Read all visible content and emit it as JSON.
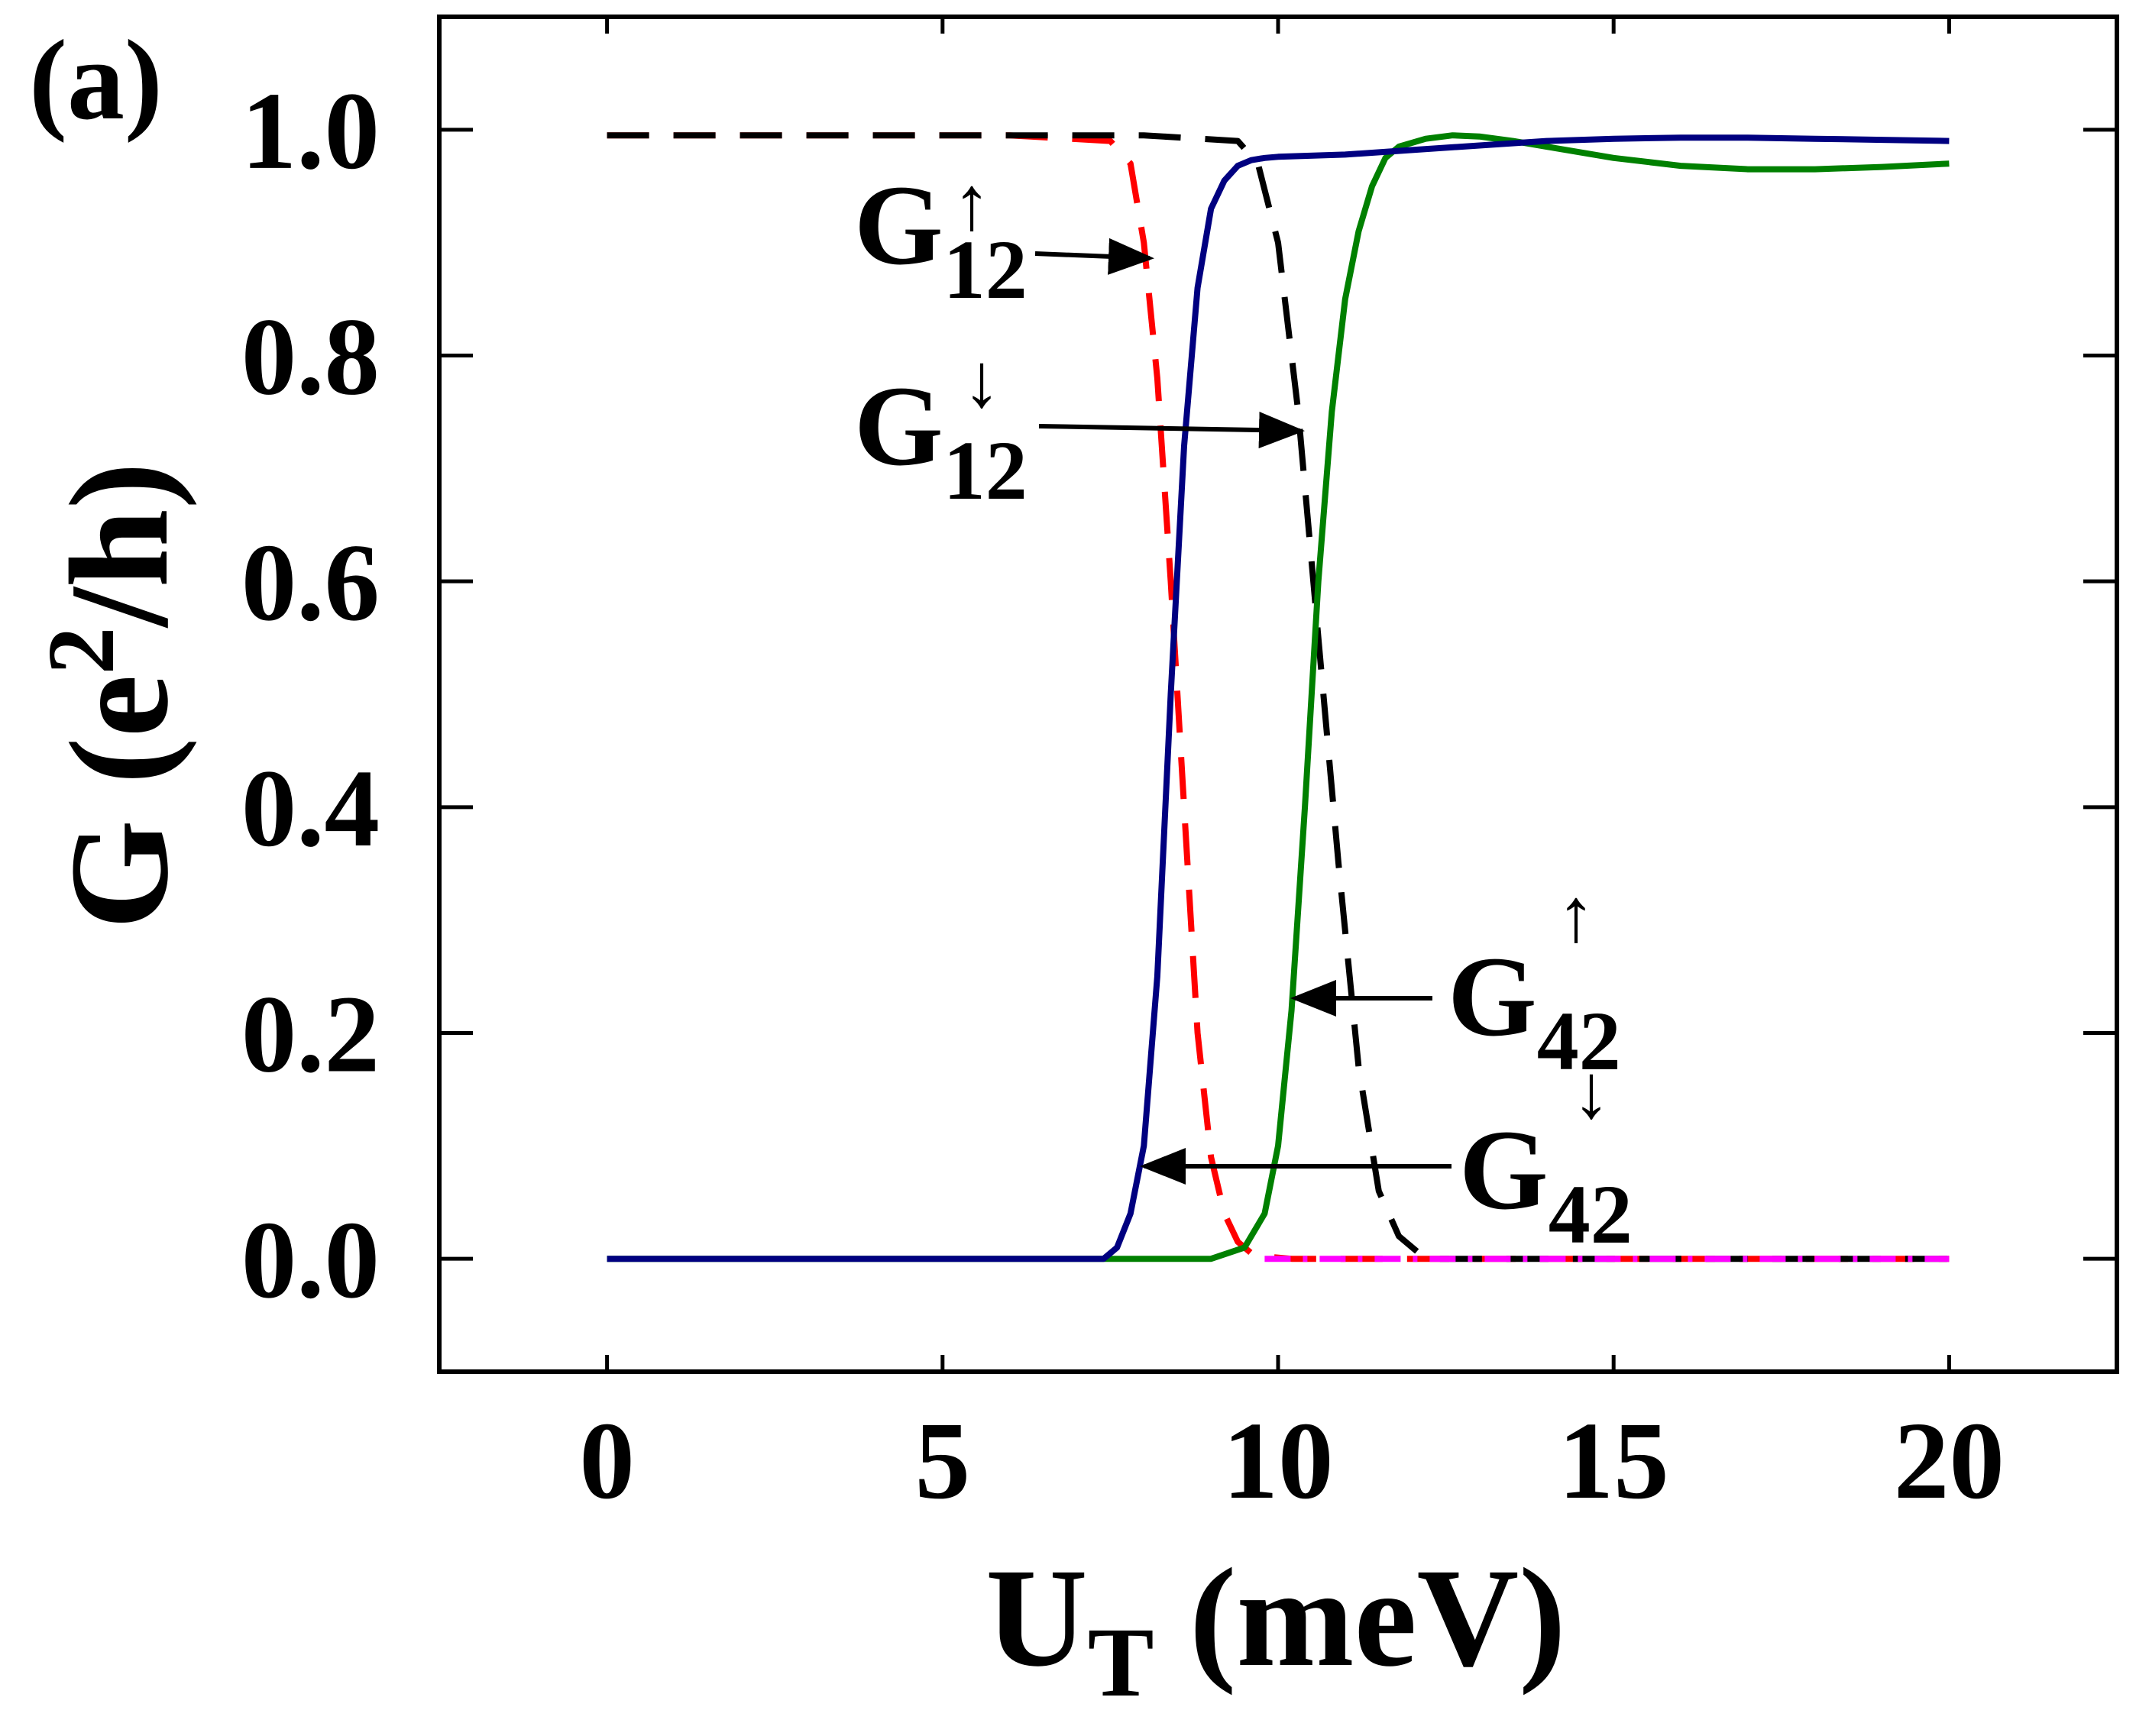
{
  "chart_data": {
    "type": "line",
    "panel_label": "(a)",
    "xlabel": {
      "main": "U",
      "sub": "T",
      "rest": " (meV)"
    },
    "ylabel": {
      "prefix": "G (e",
      "sup": "2",
      "suffix": "/h)"
    },
    "xlim": [
      -2.5,
      22.5
    ],
    "ylim": [
      -0.1,
      1.1
    ],
    "xticks": [
      0,
      5,
      10,
      15,
      20
    ],
    "xtick_labels": [
      "0",
      "5",
      "10",
      "15",
      "20"
    ],
    "yticks": [
      0.0,
      0.2,
      0.4,
      0.6,
      0.8,
      1.0
    ],
    "ytick_labels": [
      "0.0",
      "0.2",
      "0.4",
      "0.6",
      "0.8",
      "1.0"
    ],
    "series": [
      {
        "name": "G12 up",
        "color": "#ff0000",
        "style": "dashed",
        "x": [
          0,
          2,
          4,
          6,
          7.5,
          7.8,
          8.0,
          8.2,
          8.4,
          8.6,
          8.8,
          9.0,
          9.2,
          9.4,
          9.6,
          9.8,
          10.2,
          12,
          15,
          17,
          20
        ],
        "y": [
          0.995,
          0.995,
          0.995,
          0.995,
          0.99,
          0.97,
          0.9,
          0.78,
          0.6,
          0.4,
          0.2,
          0.09,
          0.04,
          0.015,
          0.005,
          0.002,
          0.0,
          0.0,
          0.0,
          0.0,
          0.0
        ]
      },
      {
        "name": "G12 down",
        "color": "#000000",
        "style": "dashed",
        "x": [
          0,
          2,
          4,
          6,
          8,
          9.4,
          9.7,
          10.0,
          10.3,
          10.6,
          10.9,
          11.2,
          11.5,
          11.8,
          12.1,
          12.4,
          13,
          15,
          17,
          20
        ],
        "y": [
          0.995,
          0.995,
          0.995,
          0.995,
          0.995,
          0.99,
          0.97,
          0.9,
          0.75,
          0.55,
          0.35,
          0.17,
          0.06,
          0.02,
          0.005,
          0.0,
          0.0,
          0.0,
          0.0,
          0.0
        ]
      },
      {
        "name": "G42 up",
        "color": "#008000",
        "style": "solid",
        "x": [
          0,
          4,
          7.5,
          9.0,
          9.5,
          9.8,
          10.0,
          10.2,
          10.4,
          10.6,
          10.8,
          11.0,
          11.2,
          11.4,
          11.6,
          11.8,
          12.2,
          12.6,
          13,
          13.5,
          14,
          15,
          16,
          17,
          18,
          19,
          20
        ],
        "y": [
          0.0,
          0.0,
          0.0,
          0.0,
          0.01,
          0.04,
          0.1,
          0.22,
          0.4,
          0.6,
          0.75,
          0.85,
          0.91,
          0.95,
          0.975,
          0.985,
          0.992,
          0.995,
          0.994,
          0.99,
          0.985,
          0.975,
          0.968,
          0.965,
          0.965,
          0.967,
          0.97
        ]
      },
      {
        "name": "G42 down",
        "color": "#000080",
        "style": "solid",
        "x": [
          0,
          4,
          7.4,
          7.6,
          7.8,
          8.0,
          8.2,
          8.4,
          8.6,
          8.8,
          9.0,
          9.2,
          9.4,
          9.6,
          9.8,
          10,
          11,
          12,
          13,
          14,
          15,
          16,
          17,
          18,
          19,
          20
        ],
        "y": [
          0.0,
          0.0,
          0.0,
          0.01,
          0.04,
          0.1,
          0.25,
          0.5,
          0.72,
          0.86,
          0.93,
          0.955,
          0.968,
          0.973,
          0.975,
          0.976,
          0.978,
          0.982,
          0.986,
          0.99,
          0.992,
          0.993,
          0.993,
          0.992,
          0.991,
          0.99
        ]
      },
      {
        "name": "zero level",
        "color": "#ff00ff",
        "style": "dashdot",
        "x": [
          9.8,
          20
        ],
        "y": [
          0.0,
          0.0
        ]
      }
    ],
    "annotations": [
      {
        "text": "G",
        "sub": "12",
        "sup": "↑",
        "series": "G12 up"
      },
      {
        "text": "G",
        "sub": "12",
        "sup": "↓",
        "series": "G12 down"
      },
      {
        "text": "G",
        "sub": "42",
        "sup": "↑",
        "series": "G42 up"
      },
      {
        "text": "G",
        "sub": "42",
        "sup": "↓",
        "series": "G42 down"
      }
    ]
  }
}
